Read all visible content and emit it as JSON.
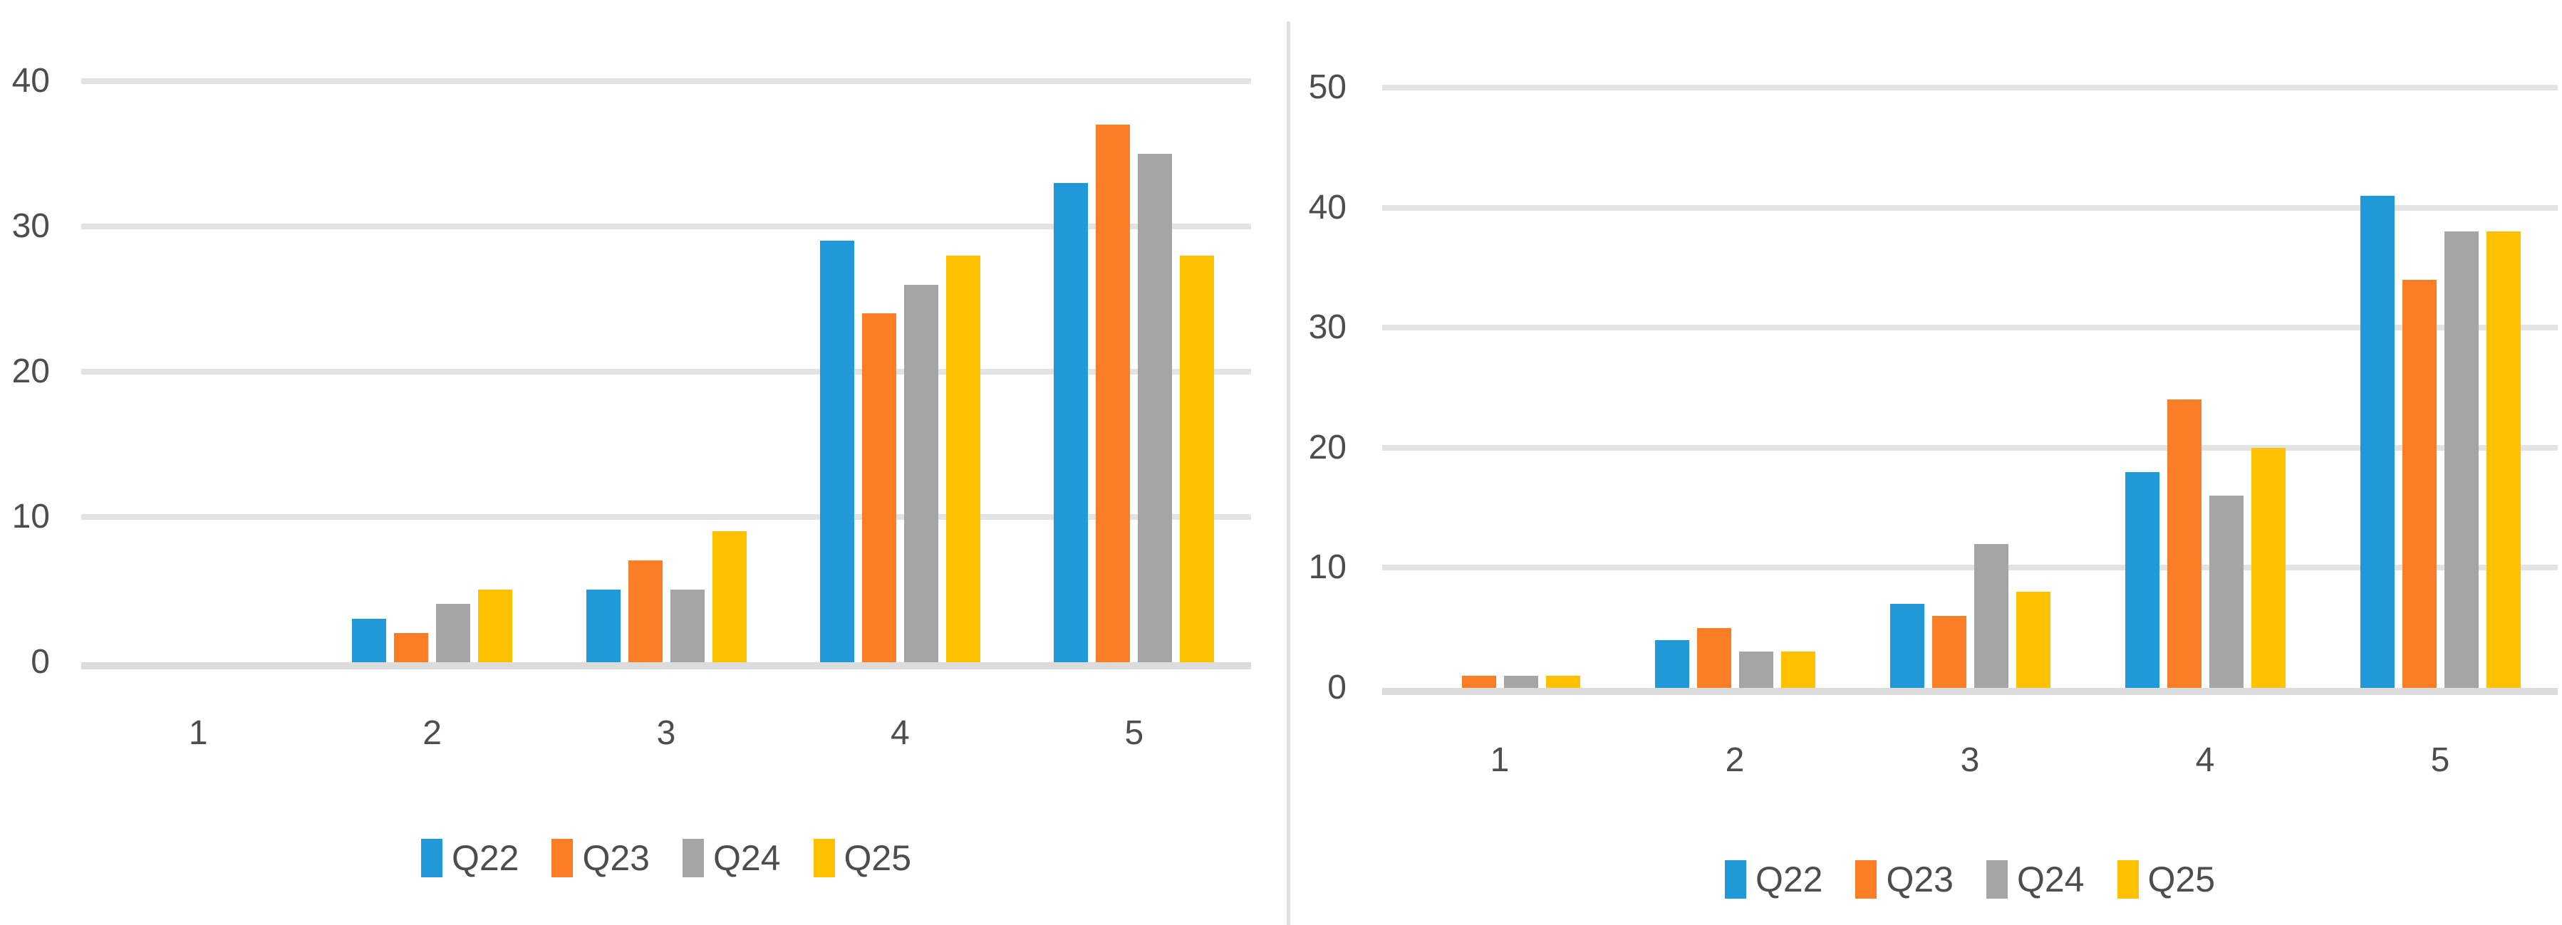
{
  "figure": {
    "background": "#ffffff",
    "divider_color": "#e0e0e0",
    "gridline_color": "#e3e3e3",
    "axis_line_color": "#dcdcdc",
    "label_color": "#4d4d4d"
  },
  "chart_data": [
    {
      "type": "bar",
      "title": "",
      "categories": [
        "1",
        "2",
        "3",
        "4",
        "5"
      ],
      "y_ticks": [
        0,
        10,
        20,
        30,
        40
      ],
      "ylim": [
        0,
        40
      ],
      "grid": true,
      "legend_position": "bottom",
      "series": [
        {
          "name": "Q22",
          "color": "#2199d9",
          "values": [
            0,
            3,
            5,
            29,
            33
          ]
        },
        {
          "name": "Q23",
          "color": "#fb7d26",
          "values": [
            0,
            2,
            7,
            24,
            37
          ]
        },
        {
          "name": "Q24",
          "color": "#a5a5a5",
          "values": [
            0,
            4,
            5,
            26,
            35
          ]
        },
        {
          "name": "Q25",
          "color": "#ffc000",
          "values": [
            0,
            5,
            9,
            28,
            28
          ]
        }
      ]
    },
    {
      "type": "bar",
      "title": "",
      "categories": [
        "1",
        "2",
        "3",
        "4",
        "5"
      ],
      "y_ticks": [
        0,
        10,
        20,
        30,
        40,
        50
      ],
      "ylim": [
        0,
        50
      ],
      "grid": true,
      "legend_position": "bottom",
      "series": [
        {
          "name": "Q22",
          "color": "#2199d9",
          "values": [
            0,
            4,
            7,
            18,
            41
          ]
        },
        {
          "name": "Q23",
          "color": "#fb7d26",
          "values": [
            1,
            5,
            6,
            24,
            34
          ]
        },
        {
          "name": "Q24",
          "color": "#a5a5a5",
          "values": [
            1,
            3,
            12,
            16,
            38
          ]
        },
        {
          "name": "Q25",
          "color": "#ffc000",
          "values": [
            1,
            3,
            8,
            20,
            38
          ]
        }
      ]
    }
  ]
}
